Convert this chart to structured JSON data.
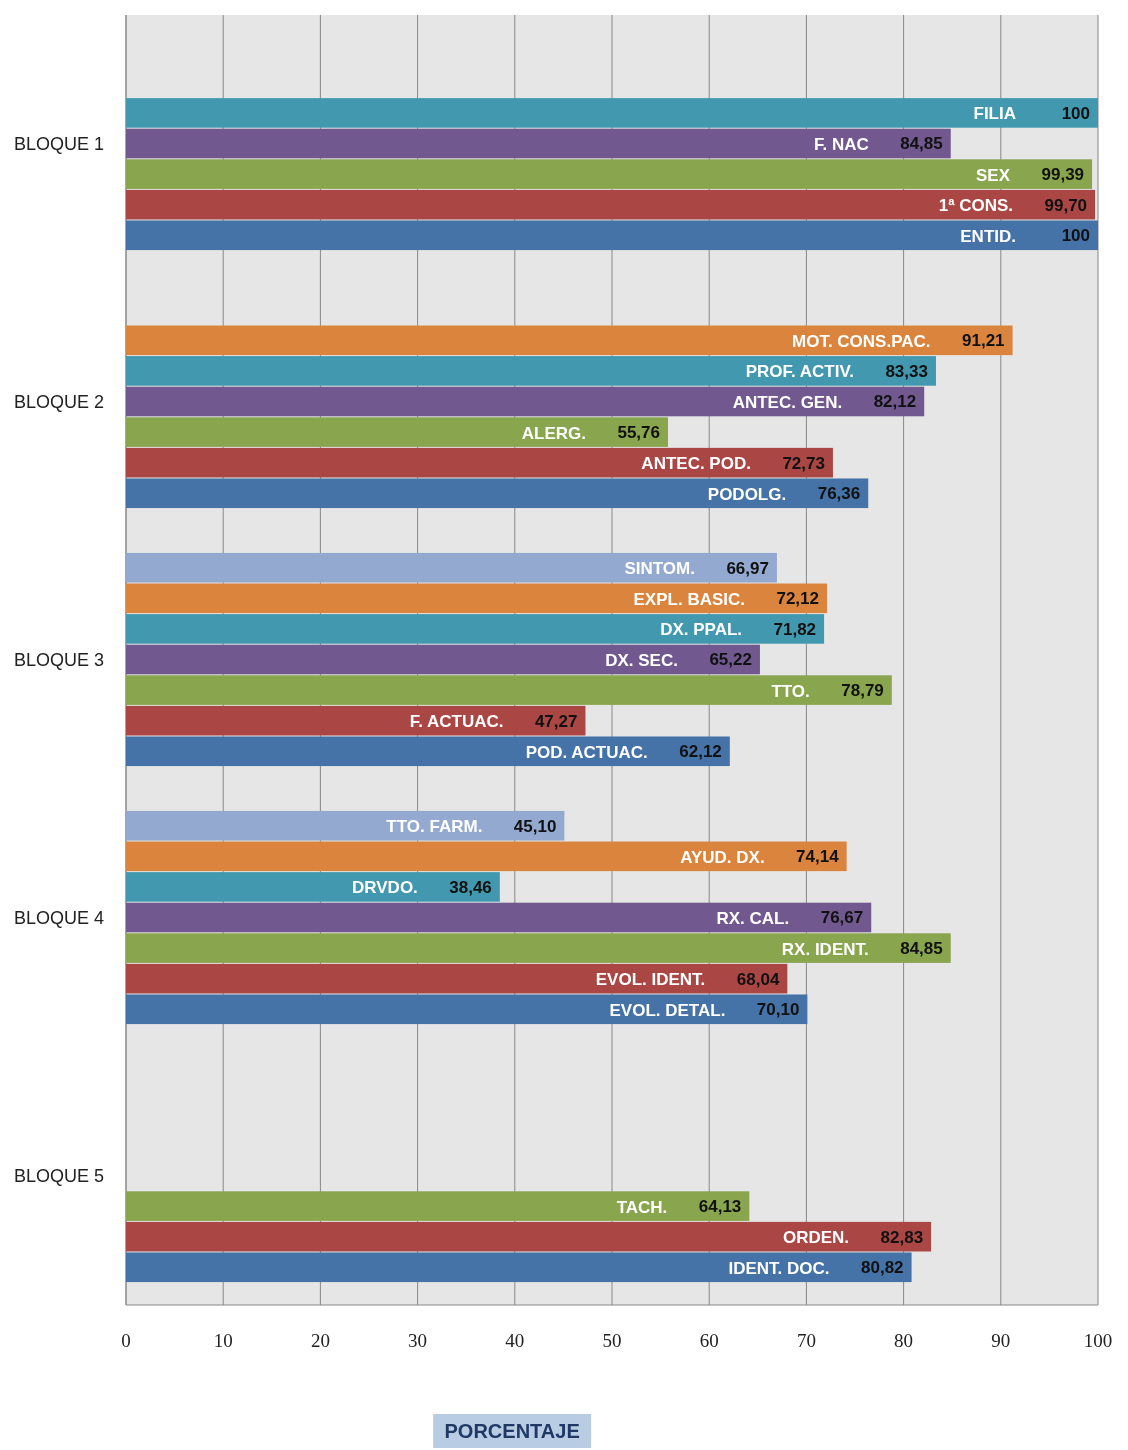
{
  "chart_data": {
    "type": "bar",
    "orientation": "horizontal",
    "xlabel": "PORCENTAJE",
    "categories": [
      "BLOQUE 1",
      "BLOQUE 2",
      "BLOQUE 3",
      "BLOQUE 4",
      "BLOQUE 5"
    ],
    "xlim": [
      0,
      100
    ],
    "xticks": [
      0,
      10,
      20,
      30,
      40,
      50,
      60,
      70,
      80,
      90,
      100
    ],
    "grid": "x",
    "series": [
      {
        "color": "#4572a7",
        "values": [
          100,
          76.36,
          62.12,
          70.1,
          80.82
        ],
        "value_labels": [
          "100",
          "76,36",
          "62,12",
          "70,10",
          "80,82"
        ]
      },
      {
        "color": "#aa4643",
        "values": [
          99.7,
          72.73,
          47.27,
          68.04,
          82.83
        ],
        "value_labels": [
          "99,70",
          "72,73",
          "47,27",
          "68,04",
          "82,83"
        ]
      },
      {
        "color": "#89a54e",
        "values": [
          99.39,
          55.76,
          78.79,
          84.85,
          64.13
        ],
        "value_labels": [
          "99,39",
          "55,76",
          "78,79",
          "84,85",
          "64,13"
        ]
      },
      {
        "color": "#71588f",
        "values": [
          84.85,
          82.12,
          65.22,
          76.67,
          null
        ],
        "value_labels": [
          "84,85",
          "82,12",
          "65,22",
          "76,67",
          null
        ]
      },
      {
        "color": "#4198af",
        "values": [
          100,
          83.33,
          71.82,
          38.46,
          null
        ],
        "value_labels": [
          "100",
          "83,33",
          "71,82",
          "38,46",
          null
        ]
      },
      {
        "color": "#db843d",
        "values": [
          null,
          91.21,
          72.12,
          74.14,
          null
        ],
        "value_labels": [
          null,
          "91,21",
          "72,12",
          "74,14",
          null
        ]
      },
      {
        "color": "#93a9cf",
        "values": [
          null,
          null,
          66.97,
          45.1,
          null
        ],
        "value_labels": [
          null,
          null,
          "66,97",
          "45,10",
          null
        ]
      }
    ],
    "annotations": [
      "ENTID.",
      "1ª CONS.",
      "SEX",
      "F. NAC",
      "FILIA",
      "PODOLG.",
      "ANTEC. POD.",
      "ALERG.",
      "ANTEC. GEN.",
      "PROF. ACTIV.",
      "MOT. CONS.PAC.",
      "POD. ACTUAC.",
      "F. ACTUAC.",
      "TTO.",
      "DX. SEC.",
      "DX. PPAL.",
      "EXPL. BASIC.",
      "SINTOM.",
      "EVOL. DETAL.",
      "EVOL. IDENT.",
      "RX. IDENT.",
      "RX. CAL.",
      "DRVDO.",
      "AYUD. DX.",
      "TTO. FARM.",
      "IDENT. DOC.",
      "ORDEN.",
      "TACH."
    ]
  }
}
